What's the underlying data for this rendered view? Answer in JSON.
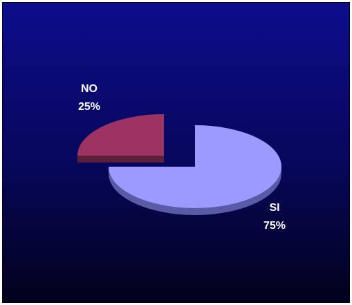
{
  "chart_data": {
    "type": "pie",
    "style": "3d-exploded",
    "slices": [
      {
        "label": "SI",
        "value": 75,
        "percent_label": "75%",
        "color": "#9b9bff",
        "side_color": "#5a5aa6"
      },
      {
        "label": "NO",
        "value": 25,
        "percent_label": "25%",
        "color": "#9c3362",
        "side_color": "#5e1f3a"
      }
    ],
    "background_color": "#0a0a78"
  }
}
